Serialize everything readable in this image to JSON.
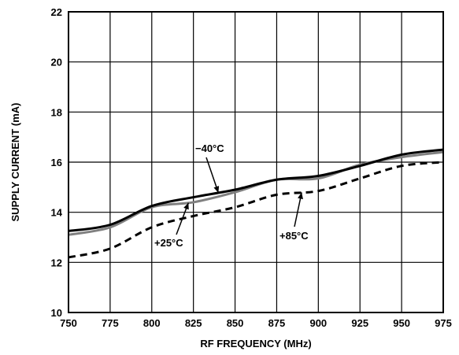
{
  "chart_data": {
    "type": "line",
    "xlabel": "RF FREQUENCY (MHz)",
    "ylabel": "SUPPLY CURRENT (mA)",
    "xlim": [
      750,
      975
    ],
    "ylim": [
      10,
      22
    ],
    "xticks": [
      750,
      775,
      800,
      825,
      850,
      875,
      900,
      925,
      950,
      975
    ],
    "yticks": [
      10,
      12,
      14,
      16,
      18,
      20,
      22
    ],
    "grid": true,
    "x": [
      750,
      775,
      800,
      825,
      850,
      875,
      900,
      925,
      950,
      975
    ],
    "series": [
      {
        "name": "−40°C",
        "color": "#000000",
        "style": "solid",
        "values": [
          13.25,
          13.5,
          14.25,
          14.6,
          14.9,
          15.3,
          15.45,
          15.85,
          16.3,
          16.5
        ]
      },
      {
        "name": "+25°C",
        "color": "#808080",
        "style": "solid",
        "values": [
          13.1,
          13.4,
          14.2,
          14.4,
          14.8,
          15.3,
          15.35,
          15.9,
          16.2,
          16.4
        ]
      },
      {
        "name": "+85°C",
        "color": "#000000",
        "style": "dashed",
        "values": [
          12.2,
          12.55,
          13.4,
          13.85,
          14.2,
          14.7,
          14.85,
          15.35,
          15.85,
          16.0
        ]
      }
    ],
    "annotations": [
      {
        "text": "−40°C",
        "series": 0,
        "at_x": 840
      },
      {
        "text": "+25°C",
        "series": 1,
        "at_x": 822
      },
      {
        "text": "+85°C",
        "series": 2,
        "at_x": 890
      }
    ]
  }
}
